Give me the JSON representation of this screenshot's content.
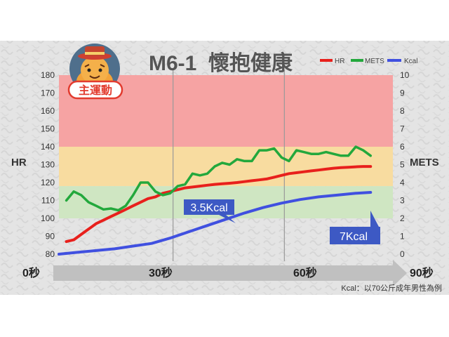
{
  "colors": {
    "background": "#e4e4e4",
    "band_red": "#f6a3a3",
    "band_yellow": "#f8dca0",
    "band_green": "#cfe6c2",
    "hr": "#e8201c",
    "mets": "#23a83c",
    "kcal": "#4050e0",
    "callout": "#3d59c4",
    "arrow": "#c0c0c0"
  },
  "badge": {
    "text": "主運動",
    "icon": "tiger-mascot-icon"
  },
  "chart_data": {
    "type": "line",
    "title": "M6-1  懷抱健康",
    "legend": {
      "position": "top-right",
      "items": [
        "HR",
        "METS",
        "Kcal"
      ]
    },
    "left_axis": {
      "label": "HR",
      "range": [
        80,
        180
      ],
      "ticks": [
        "180",
        "170",
        "160",
        "150",
        "140",
        "130",
        "120",
        "110",
        "100",
        "90",
        "80"
      ]
    },
    "right_axis": {
      "label": "METS",
      "range": [
        0,
        10
      ],
      "ticks": [
        "10",
        "9",
        "8",
        "7",
        "6",
        "5",
        "4",
        "3",
        "2",
        "1",
        "0"
      ]
    },
    "bands": [
      {
        "zone": "red",
        "hr_from": 140,
        "hr_to": 180
      },
      {
        "zone": "yellow",
        "hr_from": 118,
        "hr_to": 140
      },
      {
        "zone": "green",
        "hr_from": 100,
        "hr_to": 118
      }
    ],
    "x_range": [
      0,
      90
    ],
    "x_labels": [
      {
        "t": 0,
        "text": "0秒"
      },
      {
        "t": 30,
        "text": "30秒"
      },
      {
        "t": 60,
        "text": "60秒"
      },
      {
        "t": 90,
        "text": "90秒"
      }
    ],
    "markers_t": [
      30,
      60
    ],
    "series": [
      {
        "name": "HR",
        "axis": "left",
        "x": [
          2,
          4,
          6,
          8,
          10,
          12,
          14,
          16,
          18,
          20,
          22,
          24,
          26,
          28,
          30,
          32,
          34,
          36,
          38,
          40,
          42,
          44,
          46,
          48,
          50,
          52,
          54,
          56,
          58,
          60,
          62,
          64,
          66,
          68,
          70,
          72,
          74,
          76,
          78,
          80,
          82,
          84
        ],
        "values": [
          87,
          88,
          91,
          94,
          97,
          99,
          101,
          103,
          105,
          107,
          109,
          111,
          112,
          114,
          115,
          116,
          117,
          117.5,
          118,
          118.5,
          119,
          119.3,
          119.6,
          120,
          120.5,
          121,
          121.5,
          122,
          123,
          124,
          125,
          125.5,
          126,
          126.5,
          127,
          127.5,
          128,
          128.3,
          128.5,
          128.8,
          129,
          129
        ]
      },
      {
        "name": "METS",
        "axis": "right",
        "x": [
          2,
          4,
          6,
          8,
          10,
          12,
          14,
          16,
          18,
          20,
          22,
          24,
          26,
          28,
          30,
          32,
          34,
          36,
          38,
          40,
          42,
          44,
          46,
          48,
          50,
          52,
          54,
          56,
          58,
          60,
          62,
          64,
          66,
          68,
          70,
          72,
          74,
          76,
          78,
          80,
          82,
          84
        ],
        "values": [
          3.0,
          3.5,
          3.3,
          2.9,
          2.7,
          2.5,
          2.55,
          2.45,
          2.7,
          3.3,
          4.0,
          4.0,
          3.5,
          3.3,
          3.4,
          3.8,
          3.9,
          4.5,
          4.4,
          4.5,
          4.9,
          5.1,
          5.0,
          5.3,
          5.2,
          5.2,
          5.8,
          5.8,
          5.9,
          5.4,
          5.2,
          5.8,
          5.7,
          5.6,
          5.6,
          5.7,
          5.6,
          5.5,
          5.5,
          6.0,
          5.8,
          5.5
        ]
      },
      {
        "name": "Kcal",
        "axis": "right",
        "x": [
          0,
          5,
          10,
          15,
          20,
          25,
          30,
          35,
          40,
          45,
          50,
          55,
          60,
          65,
          70,
          75,
          80,
          84
        ],
        "values": [
          0,
          0.1,
          0.2,
          0.3,
          0.45,
          0.6,
          0.9,
          1.25,
          1.6,
          1.95,
          2.3,
          2.6,
          2.85,
          3.05,
          3.2,
          3.3,
          3.4,
          3.45
        ]
      }
    ],
    "annotations": [
      {
        "text": "3.5Kcal",
        "t": 35
      },
      {
        "text": "7Kcal",
        "t": 65
      }
    ],
    "footnote": "Kcal：以70公斤成年男性為例"
  }
}
